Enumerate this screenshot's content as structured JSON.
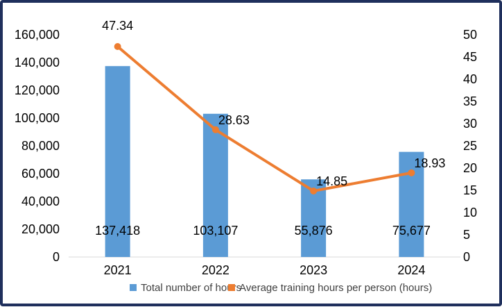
{
  "chart_data": {
    "type": "bar",
    "categories": [
      "2021",
      "2022",
      "2023",
      "2024"
    ],
    "series": [
      {
        "name": "Total number of hours",
        "type": "bar",
        "axis": "left",
        "color": "#5b9bd5",
        "values": [
          137418,
          103107,
          55876,
          75677
        ],
        "labels": [
          "137,418",
          "103,107",
          "55,876",
          "75,677"
        ]
      },
      {
        "name": "Average training hours per person (hours)",
        "type": "line",
        "axis": "right",
        "color": "#ed7d31",
        "values": [
          47.34,
          28.63,
          14.85,
          18.93
        ],
        "labels": [
          "47.34",
          "28.63",
          "14.85",
          "18.93"
        ]
      }
    ],
    "y_left": {
      "min": 0,
      "max": 160000,
      "ticks": [
        "0",
        "20,000",
        "40,000",
        "60,000",
        "80,000",
        "100,000",
        "120,000",
        "140,000",
        "160,000"
      ]
    },
    "y_right": {
      "min": 0,
      "max": 50,
      "ticks": [
        "0",
        "5",
        "10",
        "15",
        "20",
        "25",
        "30",
        "35",
        "40",
        "45",
        "50"
      ]
    },
    "grid": false,
    "legend_position": "bottom"
  }
}
